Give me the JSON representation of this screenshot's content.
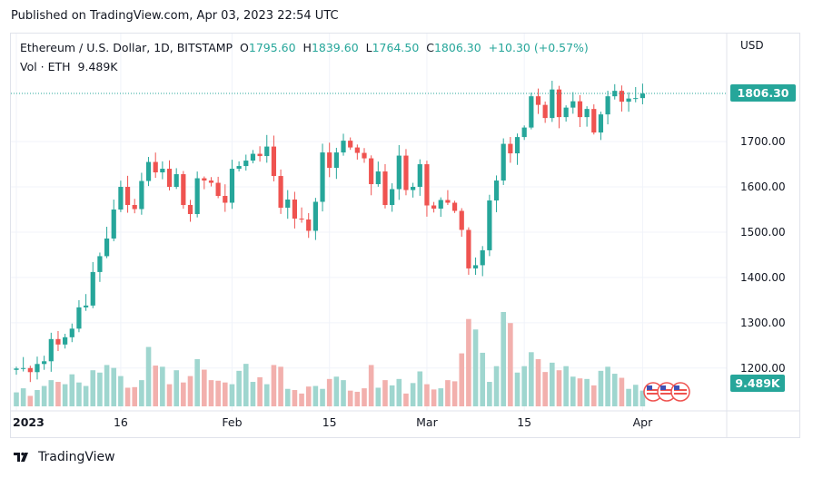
{
  "header": {
    "published": "Published on TradingView.com, Apr 03, 2023 22:54 UTC"
  },
  "legend": {
    "symbol": "Ethereum / U.S. Dollar, 1D, BITSTAMP",
    "o_label": "O",
    "o_value": "1795.60",
    "h_label": "H",
    "h_value": "1839.60",
    "l_label": "L",
    "l_value": "1764.50",
    "c_label": "C",
    "c_value": "1806.30",
    "change": "+10.30 (+0.57%)",
    "vol_label": "Vol · ETH",
    "vol_value": "9.489K"
  },
  "axis": {
    "currency": "USD"
  },
  "price_tag": "1806.30",
  "vol_tag": "9.489K",
  "brand": {
    "name": "TradingView"
  },
  "colors": {
    "up": "#26a69a",
    "down": "#ef5350",
    "vol_up": "#9fd6cf",
    "vol_down": "#f2b0ad",
    "grid": "#f0f3fa"
  },
  "chart_data": {
    "type": "candlestick",
    "title": "Ethereum / U.S. Dollar, 1D, BITSTAMP",
    "ylim": [
      1140,
      1910
    ],
    "y_ticks": [
      "1200.00",
      "1300.00",
      "1400.00",
      "1500.00",
      "1600.00",
      "1700.00"
    ],
    "x_ticks": [
      {
        "label": "2023",
        "index": 0
      },
      {
        "label": "16",
        "index": 15
      },
      {
        "label": "Feb",
        "index": 31
      },
      {
        "label": "15",
        "index": 45
      },
      {
        "label": "Mar",
        "index": 59
      },
      {
        "label": "15",
        "index": 73
      },
      {
        "label": "Apr",
        "index": 90
      }
    ],
    "close": [
      1199,
      1200,
      1191,
      1209,
      1215,
      1264,
      1252,
      1268,
      1287,
      1334,
      1338,
      1412,
      1447,
      1486,
      1550,
      1600,
      1560,
      1551,
      1613,
      1655,
      1632,
      1640,
      1600,
      1628,
      1560,
      1540,
      1619,
      1614,
      1609,
      1580,
      1565,
      1640,
      1646,
      1658,
      1673,
      1668,
      1689,
      1624,
      1554,
      1572,
      1530,
      1528,
      1503,
      1567,
      1676,
      1642,
      1676,
      1702,
      1687,
      1675,
      1663,
      1606,
      1634,
      1560,
      1595,
      1669,
      1593,
      1600,
      1650,
      1559,
      1552,
      1571,
      1565,
      1547,
      1505,
      1420,
      1427,
      1460,
      1570,
      1614,
      1695,
      1674,
      1710,
      1731,
      1800,
      1781,
      1752,
      1815,
      1754,
      1775,
      1789,
      1754,
      1772,
      1720,
      1760,
      1800,
      1812,
      1788,
      1795,
      1796,
      1806
    ],
    "volume": [
      0.24,
      0.31,
      0.18,
      0.28,
      0.35,
      0.45,
      0.42,
      0.38,
      0.55,
      0.41,
      0.35,
      0.62,
      0.58,
      0.71,
      0.66,
      0.52,
      0.32,
      0.33,
      0.45,
      1.02,
      0.7,
      0.68,
      0.38,
      0.62,
      0.41,
      0.52,
      0.81,
      0.63,
      0.45,
      0.44,
      0.41,
      0.38,
      0.61,
      0.73,
      0.42,
      0.5,
      0.38,
      0.71,
      0.68,
      0.3,
      0.28,
      0.22,
      0.34,
      0.35,
      0.3,
      0.47,
      0.51,
      0.45,
      0.27,
      0.25,
      0.31,
      0.71,
      0.32,
      0.45,
      0.36,
      0.47,
      0.22,
      0.4,
      0.6,
      0.38,
      0.29,
      0.31,
      0.45,
      0.43,
      0.91,
      1.5,
      1.32,
      0.92,
      0.42,
      0.69,
      1.62,
      1.43,
      0.58,
      0.69,
      0.93,
      0.81,
      0.59,
      0.75,
      0.62,
      0.69,
      0.51,
      0.48,
      0.47,
      0.36,
      0.61,
      0.68,
      0.56,
      0.49,
      0.3,
      0.37,
      0.27
    ],
    "volume_ylim": [
      0,
      1.62
    ],
    "last_price": 1806.3,
    "x_axis": "date (Jan 01 – Apr 03, 2023)",
    "y_axis": "price (USD)"
  }
}
